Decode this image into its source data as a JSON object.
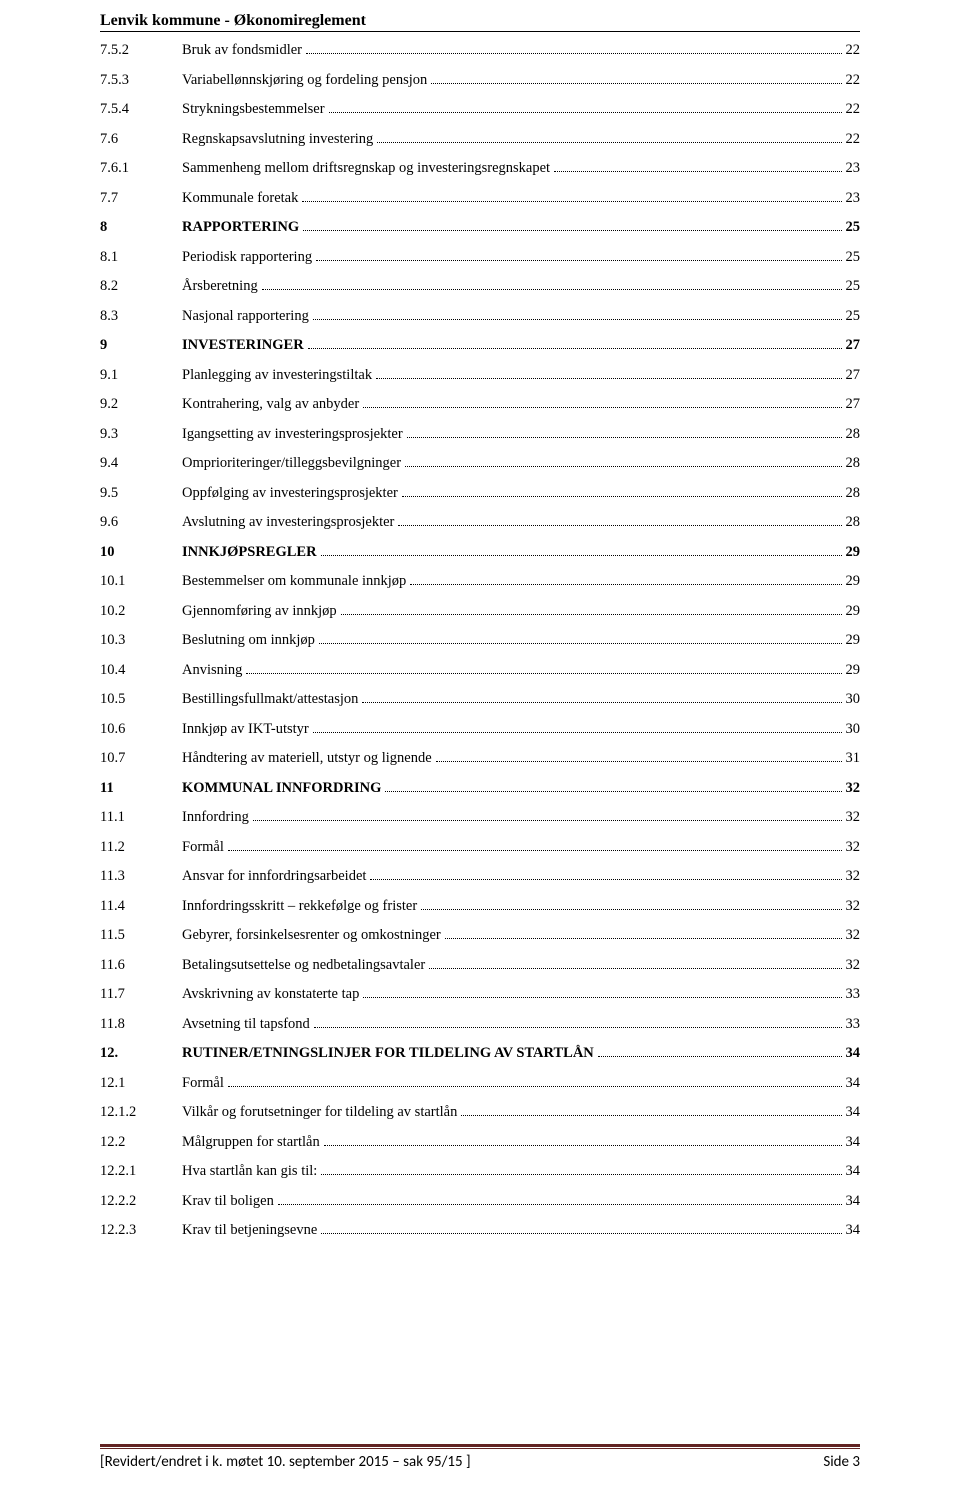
{
  "header": "Lenvik kommune - Økonomireglement",
  "toc": [
    {
      "num": "7.5.2",
      "label": "Bruk av fondsmidler",
      "page": "22",
      "bold": false
    },
    {
      "num": "7.5.3",
      "label": "Variabellønnskjøring og fordeling pensjon",
      "page": "22",
      "bold": false
    },
    {
      "num": "7.5.4",
      "label": "Strykningsbestemmelser",
      "page": "22",
      "bold": false
    },
    {
      "num": "7.6",
      "label": "Regnskapsavslutning investering",
      "page": "22",
      "bold": false
    },
    {
      "num": "7.6.1",
      "label": "Sammenheng mellom driftsregnskap og investeringsregnskapet",
      "page": "23",
      "bold": false
    },
    {
      "num": "7.7",
      "label": "Kommunale foretak",
      "page": "23",
      "bold": false
    },
    {
      "num": "8",
      "label": "RAPPORTERING",
      "page": "25",
      "bold": true
    },
    {
      "num": "8.1",
      "label": "Periodisk rapportering",
      "page": "25",
      "bold": false
    },
    {
      "num": "8.2",
      "label": "Årsberetning",
      "page": "25",
      "bold": false
    },
    {
      "num": "8.3",
      "label": "Nasjonal rapportering",
      "page": "25",
      "bold": false
    },
    {
      "num": "9",
      "label": "INVESTERINGER",
      "page": "27",
      "bold": true
    },
    {
      "num": "9.1",
      "label": "Planlegging av investeringstiltak",
      "page": "27",
      "bold": false
    },
    {
      "num": "9.2",
      "label": "Kontrahering, valg av anbyder",
      "page": "27",
      "bold": false
    },
    {
      "num": "9.3",
      "label": "Igangsetting av investeringsprosjekter",
      "page": "28",
      "bold": false
    },
    {
      "num": "9.4",
      "label": "Omprioriteringer/tilleggsbevilgninger",
      "page": "28",
      "bold": false
    },
    {
      "num": "9.5",
      "label": "Oppfølging av investeringsprosjekter",
      "page": "28",
      "bold": false
    },
    {
      "num": "9.6",
      "label": "Avslutning av investeringsprosjekter",
      "page": "28",
      "bold": false
    },
    {
      "num": "10",
      "label": "INNKJØPSREGLER",
      "page": "29",
      "bold": true
    },
    {
      "num": "10.1",
      "label": "Bestemmelser om kommunale innkjøp",
      "page": "29",
      "bold": false
    },
    {
      "num": "10.2",
      "label": "Gjennomføring av innkjøp",
      "page": "29",
      "bold": false
    },
    {
      "num": "10.3",
      "label": "Beslutning om innkjøp",
      "page": "29",
      "bold": false
    },
    {
      "num": "10.4",
      "label": "Anvisning",
      "page": "29",
      "bold": false
    },
    {
      "num": "10.5",
      "label": "Bestillingsfullmakt/attestasjon",
      "page": "30",
      "bold": false
    },
    {
      "num": "10.6",
      "label": "Innkjøp av IKT-utstyr",
      "page": "30",
      "bold": false
    },
    {
      "num": "10.7",
      "label": "Håndtering av materiell, utstyr og lignende",
      "page": "31",
      "bold": false
    },
    {
      "num": "11",
      "label": "KOMMUNAL INNFORDRING",
      "page": "32",
      "bold": true
    },
    {
      "num": "11.1",
      "label": "Innfordring",
      "page": "32",
      "bold": false
    },
    {
      "num": "11.2",
      "label": "Formål",
      "page": "32",
      "bold": false
    },
    {
      "num": "11.3",
      "label": " Ansvar for innfordringsarbeidet",
      "page": "32",
      "bold": false
    },
    {
      "num": "11.4",
      "label": "Innfordringsskritt – rekkefølge og frister",
      "page": "32",
      "bold": false
    },
    {
      "num": "11.5",
      "label": "Gebyrer, forsinkelsesrenter og omkostninger",
      "page": "32",
      "bold": false
    },
    {
      "num": "11.6",
      "label": "Betalingsutsettelse og nedbetalingsavtaler",
      "page": "32",
      "bold": false
    },
    {
      "num": "11.7",
      "label": "Avskrivning av konstaterte tap",
      "page": "33",
      "bold": false
    },
    {
      "num": "11.8",
      "label": "Avsetning til tapsfond",
      "page": "33",
      "bold": false
    },
    {
      "num": "12.",
      "label": "RUTINER/ETNINGSLINJER FOR TILDELING AV STARTLÅN",
      "page": "34",
      "bold": true
    },
    {
      "num": "12.1",
      "label": "Formål",
      "page": "34",
      "bold": false
    },
    {
      "num": "12.1.2",
      "label": "Vilkår og forutsetninger for tildeling av startlån",
      "page": "34",
      "bold": false
    },
    {
      "num": "12.2",
      "label": "Målgruppen for startlån",
      "page": "34",
      "bold": false
    },
    {
      "num": "12.2.1",
      "label": "Hva startlån kan gis til:",
      "page": "34",
      "bold": false
    },
    {
      "num": "12.2.2",
      "label": "Krav til boligen",
      "page": "34",
      "bold": false
    },
    {
      "num": "12.2.3",
      "label": "Krav til betjeningsevne",
      "page": "34",
      "bold": false
    }
  ],
  "footer": {
    "left": "[Revidert/endret i k. møtet 10. september 2015 – sak 95/15 ]",
    "right": "Side 3",
    "rule_color": "#622423"
  }
}
